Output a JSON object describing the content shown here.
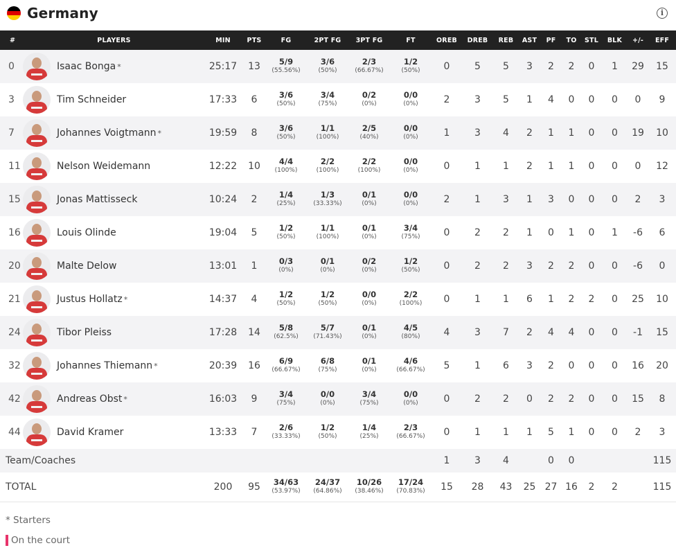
{
  "team": {
    "name": "Germany",
    "flag_colors": [
      "#000000",
      "#dd0000",
      "#ffce00"
    ],
    "info_icon": "info-icon"
  },
  "columns": [
    "#",
    "PLAYERS",
    "MIN",
    "PTS",
    "FG",
    "2PT FG",
    "3PT FG",
    "FT",
    "OREB",
    "DREB",
    "REB",
    "AST",
    "PF",
    "TO",
    "STL",
    "BLK",
    "+/-",
    "EFF"
  ],
  "players": [
    {
      "num": "0",
      "name": "Isaac Bonga",
      "starter": "*",
      "min": "25:17",
      "pts": "13",
      "fg": "5/9",
      "fg_pct": "(55.56%)",
      "fg2": "3/6",
      "fg2_pct": "(50%)",
      "fg3": "2/3",
      "fg3_pct": "(66.67%)",
      "ft": "1/2",
      "ft_pct": "(50%)",
      "oreb": "0",
      "dreb": "5",
      "reb": "5",
      "ast": "3",
      "pf": "2",
      "to": "2",
      "stl": "0",
      "blk": "1",
      "pm": "29",
      "eff": "15"
    },
    {
      "num": "3",
      "name": "Tim Schneider",
      "starter": "",
      "min": "17:33",
      "pts": "6",
      "fg": "3/6",
      "fg_pct": "(50%)",
      "fg2": "3/4",
      "fg2_pct": "(75%)",
      "fg3": "0/2",
      "fg3_pct": "(0%)",
      "ft": "0/0",
      "ft_pct": "(0%)",
      "oreb": "2",
      "dreb": "3",
      "reb": "5",
      "ast": "1",
      "pf": "4",
      "to": "0",
      "stl": "0",
      "blk": "0",
      "pm": "0",
      "eff": "9"
    },
    {
      "num": "7",
      "name": "Johannes Voigtmann",
      "starter": "*",
      "min": "19:59",
      "pts": "8",
      "fg": "3/6",
      "fg_pct": "(50%)",
      "fg2": "1/1",
      "fg2_pct": "(100%)",
      "fg3": "2/5",
      "fg3_pct": "(40%)",
      "ft": "0/0",
      "ft_pct": "(0%)",
      "oreb": "1",
      "dreb": "3",
      "reb": "4",
      "ast": "2",
      "pf": "1",
      "to": "1",
      "stl": "0",
      "blk": "0",
      "pm": "19",
      "eff": "10"
    },
    {
      "num": "11",
      "name": "Nelson Weidemann",
      "starter": "",
      "min": "12:22",
      "pts": "10",
      "fg": "4/4",
      "fg_pct": "(100%)",
      "fg2": "2/2",
      "fg2_pct": "(100%)",
      "fg3": "2/2",
      "fg3_pct": "(100%)",
      "ft": "0/0",
      "ft_pct": "(0%)",
      "oreb": "0",
      "dreb": "1",
      "reb": "1",
      "ast": "2",
      "pf": "1",
      "to": "1",
      "stl": "0",
      "blk": "0",
      "pm": "0",
      "eff": "12"
    },
    {
      "num": "15",
      "name": "Jonas Mattisseck",
      "starter": "",
      "min": "10:24",
      "pts": "2",
      "fg": "1/4",
      "fg_pct": "(25%)",
      "fg2": "1/3",
      "fg2_pct": "(33.33%)",
      "fg3": "0/1",
      "fg3_pct": "(0%)",
      "ft": "0/0",
      "ft_pct": "(0%)",
      "oreb": "2",
      "dreb": "1",
      "reb": "3",
      "ast": "1",
      "pf": "3",
      "to": "0",
      "stl": "0",
      "blk": "0",
      "pm": "2",
      "eff": "3"
    },
    {
      "num": "16",
      "name": "Louis Olinde",
      "starter": "",
      "min": "19:04",
      "pts": "5",
      "fg": "1/2",
      "fg_pct": "(50%)",
      "fg2": "1/1",
      "fg2_pct": "(100%)",
      "fg3": "0/1",
      "fg3_pct": "(0%)",
      "ft": "3/4",
      "ft_pct": "(75%)",
      "oreb": "0",
      "dreb": "2",
      "reb": "2",
      "ast": "1",
      "pf": "0",
      "to": "1",
      "stl": "0",
      "blk": "1",
      "pm": "-6",
      "eff": "6"
    },
    {
      "num": "20",
      "name": "Malte Delow",
      "starter": "",
      "min": "13:01",
      "pts": "1",
      "fg": "0/3",
      "fg_pct": "(0%)",
      "fg2": "0/1",
      "fg2_pct": "(0%)",
      "fg3": "0/2",
      "fg3_pct": "(0%)",
      "ft": "1/2",
      "ft_pct": "(50%)",
      "oreb": "0",
      "dreb": "2",
      "reb": "2",
      "ast": "3",
      "pf": "2",
      "to": "2",
      "stl": "0",
      "blk": "0",
      "pm": "-6",
      "eff": "0"
    },
    {
      "num": "21",
      "name": "Justus Hollatz",
      "starter": "*",
      "min": "14:37",
      "pts": "4",
      "fg": "1/2",
      "fg_pct": "(50%)",
      "fg2": "1/2",
      "fg2_pct": "(50%)",
      "fg3": "0/0",
      "fg3_pct": "(0%)",
      "ft": "2/2",
      "ft_pct": "(100%)",
      "oreb": "0",
      "dreb": "1",
      "reb": "1",
      "ast": "6",
      "pf": "1",
      "to": "2",
      "stl": "2",
      "blk": "0",
      "pm": "25",
      "eff": "10"
    },
    {
      "num": "24",
      "name": "Tibor Pleiss",
      "starter": "",
      "min": "17:28",
      "pts": "14",
      "fg": "5/8",
      "fg_pct": "(62.5%)",
      "fg2": "5/7",
      "fg2_pct": "(71.43%)",
      "fg3": "0/1",
      "fg3_pct": "(0%)",
      "ft": "4/5",
      "ft_pct": "(80%)",
      "oreb": "4",
      "dreb": "3",
      "reb": "7",
      "ast": "2",
      "pf": "4",
      "to": "4",
      "stl": "0",
      "blk": "0",
      "pm": "-1",
      "eff": "15"
    },
    {
      "num": "32",
      "name": "Johannes Thiemann",
      "starter": "*",
      "min": "20:39",
      "pts": "16",
      "fg": "6/9",
      "fg_pct": "(66.67%)",
      "fg2": "6/8",
      "fg2_pct": "(75%)",
      "fg3": "0/1",
      "fg3_pct": "(0%)",
      "ft": "4/6",
      "ft_pct": "(66.67%)",
      "oreb": "5",
      "dreb": "1",
      "reb": "6",
      "ast": "3",
      "pf": "2",
      "to": "0",
      "stl": "0",
      "blk": "0",
      "pm": "16",
      "eff": "20"
    },
    {
      "num": "42",
      "name": "Andreas Obst",
      "starter": "*",
      "min": "16:03",
      "pts": "9",
      "fg": "3/4",
      "fg_pct": "(75%)",
      "fg2": "0/0",
      "fg2_pct": "(0%)",
      "fg3": "3/4",
      "fg3_pct": "(75%)",
      "ft": "0/0",
      "ft_pct": "(0%)",
      "oreb": "0",
      "dreb": "2",
      "reb": "2",
      "ast": "0",
      "pf": "2",
      "to": "2",
      "stl": "0",
      "blk": "0",
      "pm": "15",
      "eff": "8"
    },
    {
      "num": "44",
      "name": "David Kramer",
      "starter": "",
      "min": "13:33",
      "pts": "7",
      "fg": "2/6",
      "fg_pct": "(33.33%)",
      "fg2": "1/2",
      "fg2_pct": "(50%)",
      "fg3": "1/4",
      "fg3_pct": "(25%)",
      "ft": "2/3",
      "ft_pct": "(66.67%)",
      "oreb": "0",
      "dreb": "1",
      "reb": "1",
      "ast": "1",
      "pf": "5",
      "to": "1",
      "stl": "0",
      "blk": "0",
      "pm": "2",
      "eff": "3"
    }
  ],
  "team_coaches": {
    "label": "Team/Coaches",
    "oreb": "1",
    "dreb": "3",
    "reb": "4",
    "pf": "0",
    "to": "0",
    "eff": "115"
  },
  "totals": {
    "label": "TOTAL",
    "min": "200",
    "pts": "95",
    "fg": "34/63",
    "fg_pct": "(53.97%)",
    "fg2": "24/37",
    "fg2_pct": "(64.86%)",
    "fg3": "10/26",
    "fg3_pct": "(38.46%)",
    "ft": "17/24",
    "ft_pct": "(70.83%)",
    "oreb": "15",
    "dreb": "28",
    "reb": "43",
    "ast": "25",
    "pf": "27",
    "to": "16",
    "stl": "2",
    "blk": "2",
    "eff": "115"
  },
  "legend": {
    "starters": "* Starters",
    "on_court": "On the court",
    "on_court_color": "#e8336b"
  }
}
